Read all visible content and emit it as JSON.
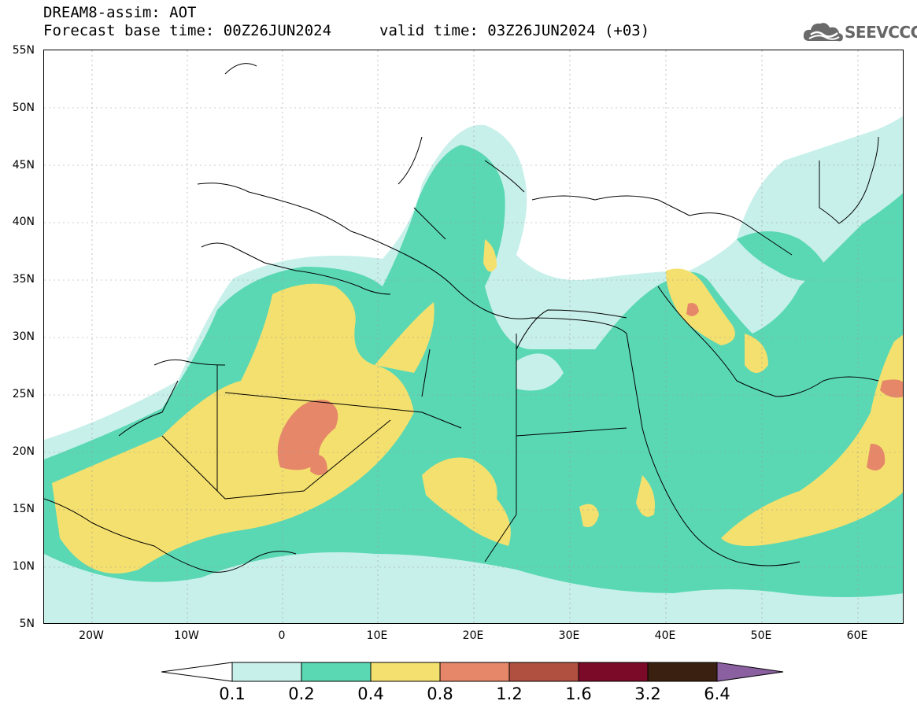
{
  "title": {
    "line1": "DREAM8-assim: AOT",
    "line2": "Forecast base time: 00Z26JUN2024",
    "valid": "valid time: 03Z26JUN2024 (+03)"
  },
  "logo": {
    "text": "SEEVCCC",
    "icon": "cloud-icon"
  },
  "axes": {
    "lat_labels": [
      "55N",
      "50N",
      "45N",
      "40N",
      "35N",
      "30N",
      "25N",
      "20N",
      "15N",
      "10N",
      "5N"
    ],
    "lon_labels": [
      "20W",
      "10W",
      "0",
      "10E",
      "20E",
      "30E",
      "40E",
      "50E",
      "60E"
    ]
  },
  "colorbar": {
    "levels": [
      "0.1",
      "0.2",
      "0.4",
      "0.8",
      "1.2",
      "1.6",
      "3.2",
      "6.4"
    ],
    "colors": [
      "#c8f0ea",
      "#5ad8b4",
      "#f4e06e",
      "#e6876a",
      "#b05040",
      "#7a0a28",
      "#3a2010",
      "#8a60a0"
    ]
  },
  "chart_data": {
    "type": "heatmap",
    "title": "DREAM8-assim: AOT",
    "xlim": [
      -25,
      65
    ],
    "ylim": [
      5,
      55
    ],
    "variable": "AOT",
    "contour_levels": [
      0.1,
      0.2,
      0.4,
      0.8,
      1.2,
      1.6,
      3.2,
      6.4
    ]
  }
}
